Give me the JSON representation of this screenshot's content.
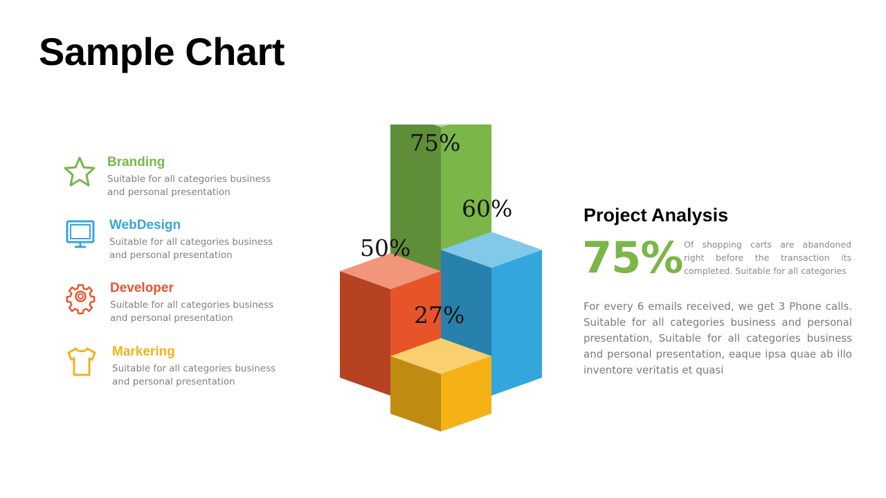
{
  "title": "Sample Chart",
  "features": [
    {
      "title": "Branding",
      "desc": "Suitable for all categories business and personal presentation",
      "icon": "star-icon",
      "color": "#7ab648"
    },
    {
      "title": "WebDesign",
      "desc": "Suitable for all categories business and personal presentation",
      "icon": "monitor-icon",
      "color": "#33a6dc"
    },
    {
      "title": "Developer",
      "desc": "Suitable for all categories business and personal presentation",
      "icon": "gear-icon",
      "color": "#e8542a"
    },
    {
      "title": "Markering",
      "desc": "Suitable for all categories business and personal presentation",
      "icon": "tshirt-icon",
      "color": "#f5b216"
    }
  ],
  "chart_data": {
    "type": "bar",
    "style": "isometric-3d",
    "title": "",
    "xlabel": "",
    "ylabel": "",
    "categories": [
      "Branding",
      "WebDesign",
      "Developer",
      "Markering"
    ],
    "values": [
      75,
      60,
      50,
      27
    ],
    "labels": [
      "75%",
      "60%",
      "50%",
      "27%"
    ],
    "colors": [
      "#7ab648",
      "#33a6dc",
      "#e8542a",
      "#f5b216"
    ],
    "ylim": [
      0,
      100
    ],
    "grid": false,
    "legend": "none"
  },
  "analysis": {
    "title": "Project Analysis",
    "big_value": "75%",
    "big_color": "#7ab648",
    "small_text": "Of shopping carts are abandoned right before the transaction its completed. Suitable for all categories",
    "paragraph": "For every 6 emails received, we get 3 Phone calls. Suitable for all categories business and personal presentation, Suitable for all categories business and personal presentation, eaque ipsa quae ab illo inventore veritatis et quasi"
  }
}
